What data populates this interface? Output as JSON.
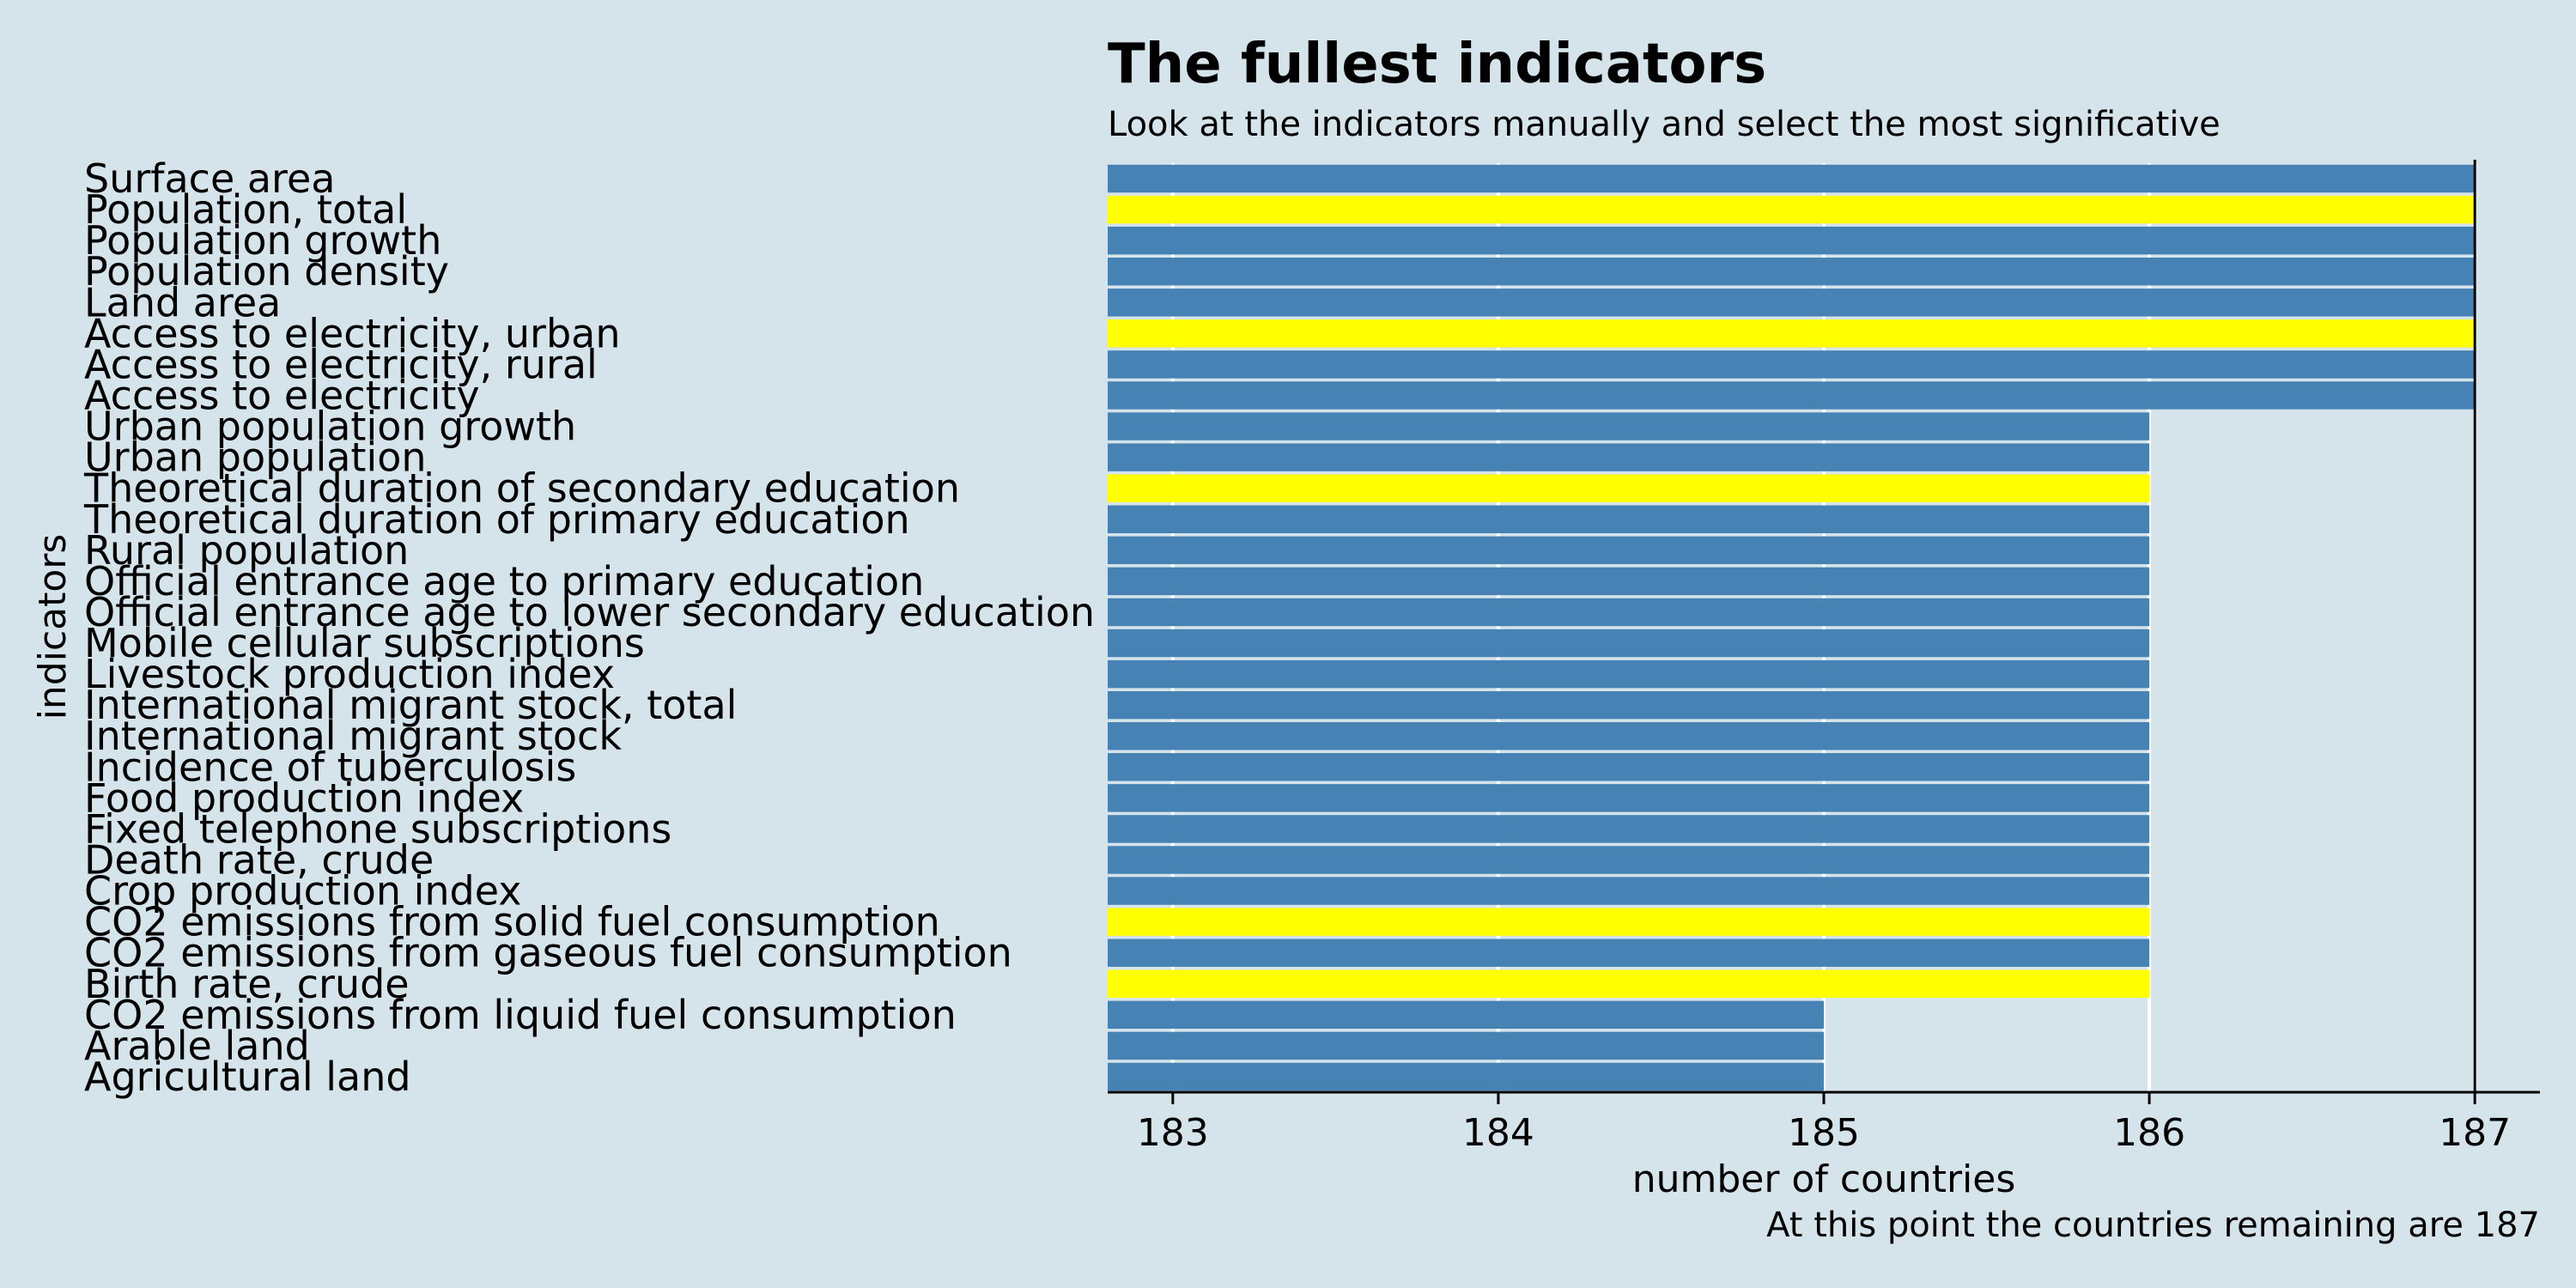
{
  "colors": {
    "background": "#d5e4eb",
    "bar_default": "#4682b4",
    "bar_highlight": "#ffff00",
    "gridline": "#ffffff",
    "text": "#000000"
  },
  "chart_data": {
    "type": "bar",
    "orientation": "horizontal",
    "title": "The fullest indicators",
    "subtitle": "Look at the indicators manually and select the most significative",
    "xlabel": "number of countries",
    "ylabel": "indicators",
    "caption": "At this point the countries remaining are 187",
    "xlim": [
      182.8,
      187.2
    ],
    "xticks": [
      183,
      184,
      185,
      186,
      187
    ],
    "grid": "vertical major lines at ticks",
    "legend": "none",
    "categories": [
      "Surface area",
      "Population, total",
      "Population growth",
      "Population density",
      "Land area",
      "Access to electricity, urban",
      "Access to electricity, rural",
      "Access to electricity",
      "Urban population growth",
      "Urban population",
      "Theoretical duration of secondary education",
      "Theoretical duration of primary education",
      "Rural population",
      "Official entrance age to primary education",
      "Official entrance age to lower secondary education",
      "Mobile cellular subscriptions",
      "Livestock production index",
      "International migrant stock, total",
      "International migrant stock",
      "Incidence of tuberculosis",
      "Food production index",
      "Fixed telephone subscriptions",
      "Death rate, crude",
      "Crop production index",
      "CO2 emissions from solid fuel consumption",
      "CO2 emissions from gaseous fuel consumption",
      "Birth rate, crude",
      "CO2 emissions from liquid fuel consumption",
      "Arable land",
      "Agricultural land"
    ],
    "values": [
      187,
      187,
      187,
      187,
      187,
      187,
      187,
      187,
      186,
      186,
      186,
      186,
      186,
      186,
      186,
      186,
      186,
      186,
      186,
      186,
      186,
      186,
      186,
      186,
      186,
      186,
      186,
      185,
      185,
      185
    ],
    "highlighted": [
      false,
      true,
      false,
      false,
      false,
      true,
      false,
      false,
      false,
      false,
      true,
      false,
      false,
      false,
      false,
      false,
      false,
      false,
      false,
      false,
      false,
      false,
      false,
      false,
      true,
      false,
      true,
      false,
      false,
      false
    ],
    "reference_line": 187
  }
}
